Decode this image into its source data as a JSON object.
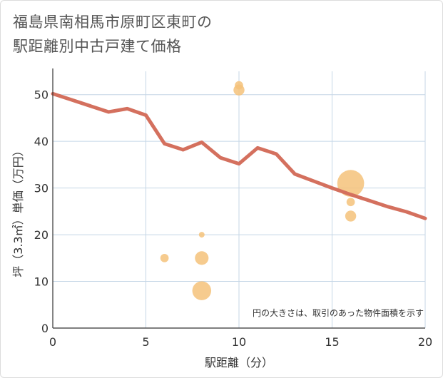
{
  "title_lines": [
    "福島県南相馬市原町区東町の",
    "駅距離別中古戸建て価格"
  ],
  "chart_data": {
    "type": "scatter",
    "title": "福島県南相馬市原町区東町の駅距離別中古戸建て価格",
    "xlabel": "駅距離（分）",
    "ylabel": "坪（3.3㎡）単価（万円）",
    "xlim": [
      0,
      20
    ],
    "ylim": [
      0,
      55
    ],
    "x_ticks": [
      0,
      5,
      10,
      15,
      20
    ],
    "y_ticks": [
      0,
      10,
      20,
      30,
      40,
      50
    ],
    "grid": true,
    "note": "円の大きさは、取引のあった物件面積を示す",
    "scatter_color": "#f5c27a",
    "line_color": "#d4705e",
    "points": [
      {
        "x": 6,
        "y": 15,
        "size": 2
      },
      {
        "x": 8,
        "y": 20,
        "size": 1
      },
      {
        "x": 8,
        "y": 15,
        "size": 4
      },
      {
        "x": 8,
        "y": 8,
        "size": 6
      },
      {
        "x": 10,
        "y": 52,
        "size": 2
      },
      {
        "x": 10,
        "y": 51,
        "size": 3
      },
      {
        "x": 16,
        "y": 31,
        "size": 9
      },
      {
        "x": 16,
        "y": 27,
        "size": 2
      },
      {
        "x": 16,
        "y": 24,
        "size": 3
      }
    ],
    "trend": {
      "x": [
        0,
        1,
        2,
        3,
        4,
        5,
        6,
        7,
        8,
        9,
        10,
        11,
        12,
        13,
        14,
        15,
        16,
        17,
        18,
        19,
        20
      ],
      "y": [
        50.2,
        48.9,
        47.6,
        46.3,
        47.0,
        45.6,
        39.5,
        38.2,
        39.8,
        36.5,
        35.2,
        38.6,
        37.3,
        33.0,
        31.5,
        30.0,
        28.6,
        27.3,
        26.0,
        24.9,
        23.5
      ]
    }
  }
}
